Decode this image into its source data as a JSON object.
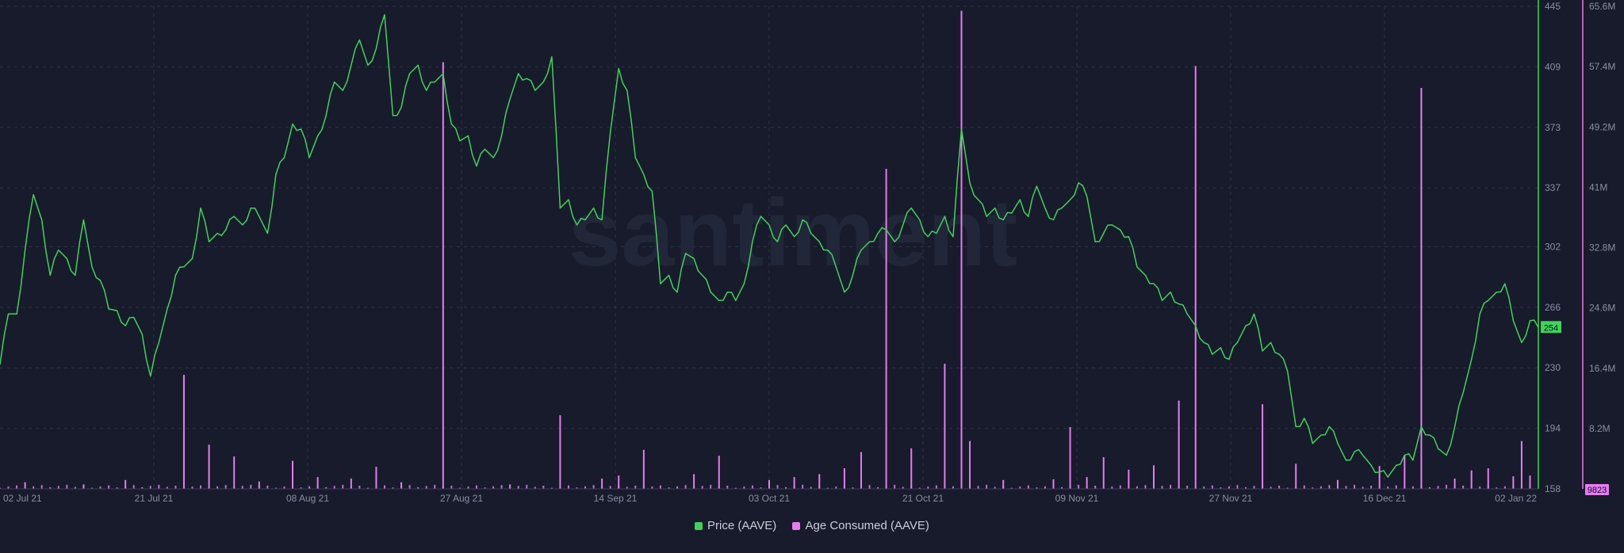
{
  "chart_data": {
    "type": "line",
    "title": "",
    "watermark": "santiment",
    "colors": {
      "price": "#3fd35a",
      "age": "#e77bf0",
      "background": "#181b2b",
      "grid": "#3a3e53",
      "tick": "#8a8ea3"
    },
    "x": {
      "ticks": [
        "02 Jul 21",
        "21 Jul 21",
        "08 Aug 21",
        "27 Aug 21",
        "14 Sep 21",
        "03 Oct 21",
        "21 Oct 21",
        "09 Nov 21",
        "27 Nov 21",
        "16 Dec 21",
        "02 Jan 22"
      ],
      "range": [
        "2021-07-02",
        "2022-01-02"
      ]
    },
    "y_left_price": {
      "range": [
        158,
        445
      ],
      "ticks": [
        "445",
        "409",
        "373",
        "337",
        "302",
        "266",
        "230",
        "194",
        "158"
      ]
    },
    "y_right_age": {
      "range": [
        0,
        65.6
      ],
      "unit": "M",
      "ticks": [
        "65.6M",
        "57.4M",
        "49.2M",
        "41M",
        "32.8M",
        "24.6M",
        "16.4M",
        "8.2M"
      ]
    },
    "current_price_label": "254",
    "current_age_label": "9823",
    "series": [
      {
        "name": "Price (AAVE)",
        "axis": "left",
        "points": [
          [
            "2021-07-02",
            232
          ],
          [
            "2021-07-03",
            262
          ],
          [
            "2021-07-04",
            262
          ],
          [
            "2021-07-05",
            300
          ],
          [
            "2021-07-06",
            333
          ],
          [
            "2021-07-07",
            318
          ],
          [
            "2021-07-08",
            285
          ],
          [
            "2021-07-09",
            300
          ],
          [
            "2021-07-10",
            295
          ],
          [
            "2021-07-11",
            285
          ],
          [
            "2021-07-12",
            318
          ],
          [
            "2021-07-13",
            290
          ],
          [
            "2021-07-14",
            282
          ],
          [
            "2021-07-15",
            265
          ],
          [
            "2021-07-16",
            264
          ],
          [
            "2021-07-17",
            255
          ],
          [
            "2021-07-18",
            260
          ],
          [
            "2021-07-19",
            250
          ],
          [
            "2021-07-20",
            225
          ],
          [
            "2021-07-21",
            245
          ],
          [
            "2021-07-22",
            265
          ],
          [
            "2021-07-23",
            285
          ],
          [
            "2021-07-24",
            290
          ],
          [
            "2021-07-25",
            295
          ],
          [
            "2021-07-26",
            325
          ],
          [
            "2021-07-27",
            305
          ],
          [
            "2021-07-28",
            310
          ],
          [
            "2021-07-29",
            312
          ],
          [
            "2021-07-30",
            320
          ],
          [
            "2021-07-31",
            315
          ],
          [
            "2021-08-01",
            325
          ],
          [
            "2021-08-02",
            320
          ],
          [
            "2021-08-03",
            310
          ],
          [
            "2021-08-04",
            345
          ],
          [
            "2021-08-05",
            355
          ],
          [
            "2021-08-06",
            375
          ],
          [
            "2021-08-07",
            372
          ],
          [
            "2021-08-08",
            355
          ],
          [
            "2021-08-09",
            368
          ],
          [
            "2021-08-10",
            380
          ],
          [
            "2021-08-11",
            400
          ],
          [
            "2021-08-12",
            395
          ],
          [
            "2021-08-13",
            410
          ],
          [
            "2021-08-14",
            425
          ],
          [
            "2021-08-15",
            410
          ],
          [
            "2021-08-16",
            420
          ],
          [
            "2021-08-17",
            440
          ],
          [
            "2021-08-18",
            380
          ],
          [
            "2021-08-19",
            385
          ],
          [
            "2021-08-20",
            405
          ],
          [
            "2021-08-21",
            410
          ],
          [
            "2021-08-22",
            395
          ],
          [
            "2021-08-23",
            400
          ],
          [
            "2021-08-24",
            405
          ],
          [
            "2021-08-25",
            375
          ],
          [
            "2021-08-26",
            365
          ],
          [
            "2021-08-27",
            368
          ],
          [
            "2021-08-28",
            350
          ],
          [
            "2021-08-29",
            360
          ],
          [
            "2021-08-30",
            355
          ],
          [
            "2021-08-31",
            368
          ],
          [
            "2021-09-01",
            390
          ],
          [
            "2021-09-02",
            405
          ],
          [
            "2021-09-03",
            402
          ],
          [
            "2021-09-04",
            395
          ],
          [
            "2021-09-05",
            400
          ],
          [
            "2021-09-06",
            415
          ],
          [
            "2021-09-07",
            325
          ],
          [
            "2021-09-08",
            330
          ],
          [
            "2021-09-09",
            315
          ],
          [
            "2021-09-10",
            318
          ],
          [
            "2021-09-11",
            325
          ],
          [
            "2021-09-12",
            318
          ],
          [
            "2021-09-13",
            370
          ],
          [
            "2021-09-14",
            408
          ],
          [
            "2021-09-15",
            395
          ],
          [
            "2021-09-16",
            355
          ],
          [
            "2021-09-17",
            345
          ],
          [
            "2021-09-18",
            335
          ],
          [
            "2021-09-19",
            280
          ],
          [
            "2021-09-20",
            285
          ],
          [
            "2021-09-21",
            275
          ],
          [
            "2021-09-22",
            298
          ],
          [
            "2021-09-23",
            295
          ],
          [
            "2021-09-24",
            285
          ],
          [
            "2021-09-25",
            275
          ],
          [
            "2021-09-26",
            270
          ],
          [
            "2021-09-27",
            275
          ],
          [
            "2021-09-28",
            270
          ],
          [
            "2021-09-29",
            280
          ],
          [
            "2021-09-30",
            305
          ],
          [
            "2021-10-01",
            320
          ],
          [
            "2021-10-02",
            315
          ],
          [
            "2021-10-03",
            305
          ],
          [
            "2021-10-04",
            315
          ],
          [
            "2021-10-05",
            308
          ],
          [
            "2021-10-06",
            318
          ],
          [
            "2021-10-07",
            310
          ],
          [
            "2021-10-08",
            305
          ],
          [
            "2021-10-09",
            300
          ],
          [
            "2021-10-10",
            290
          ],
          [
            "2021-10-11",
            275
          ],
          [
            "2021-10-12",
            285
          ],
          [
            "2021-10-13",
            300
          ],
          [
            "2021-10-14",
            305
          ],
          [
            "2021-10-15",
            310
          ],
          [
            "2021-10-16",
            312
          ],
          [
            "2021-10-17",
            305
          ],
          [
            "2021-10-18",
            315
          ],
          [
            "2021-10-19",
            325
          ],
          [
            "2021-10-20",
            318
          ],
          [
            "2021-10-21",
            308
          ],
          [
            "2021-10-22",
            310
          ],
          [
            "2021-10-23",
            320
          ],
          [
            "2021-10-24",
            308
          ],
          [
            "2021-10-25",
            372
          ],
          [
            "2021-10-26",
            340
          ],
          [
            "2021-10-27",
            330
          ],
          [
            "2021-10-28",
            320
          ],
          [
            "2021-10-29",
            325
          ],
          [
            "2021-10-30",
            318
          ],
          [
            "2021-10-31",
            322
          ],
          [
            "2021-11-01",
            330
          ],
          [
            "2021-11-02",
            320
          ],
          [
            "2021-11-03",
            338
          ],
          [
            "2021-11-04",
            325
          ],
          [
            "2021-11-05",
            318
          ],
          [
            "2021-11-06",
            325
          ],
          [
            "2021-11-07",
            330
          ],
          [
            "2021-11-08",
            340
          ],
          [
            "2021-11-09",
            332
          ],
          [
            "2021-11-10",
            305
          ],
          [
            "2021-11-11",
            310
          ],
          [
            "2021-11-12",
            315
          ],
          [
            "2021-11-13",
            312
          ],
          [
            "2021-11-14",
            308
          ],
          [
            "2021-11-15",
            290
          ],
          [
            "2021-11-16",
            285
          ],
          [
            "2021-11-17",
            280
          ],
          [
            "2021-11-18",
            270
          ],
          [
            "2021-11-19",
            275
          ],
          [
            "2021-11-20",
            268
          ],
          [
            "2021-11-21",
            262
          ],
          [
            "2021-11-22",
            255
          ],
          [
            "2021-11-23",
            245
          ],
          [
            "2021-11-24",
            238
          ],
          [
            "2021-11-25",
            242
          ],
          [
            "2021-11-26",
            235
          ],
          [
            "2021-11-27",
            245
          ],
          [
            "2021-11-28",
            255
          ],
          [
            "2021-11-29",
            262
          ],
          [
            "2021-11-30",
            240
          ],
          [
            "2021-12-01",
            245
          ],
          [
            "2021-12-02",
            238
          ],
          [
            "2021-12-03",
            228
          ],
          [
            "2021-12-04",
            195
          ],
          [
            "2021-12-05",
            200
          ],
          [
            "2021-12-06",
            185
          ],
          [
            "2021-12-07",
            190
          ],
          [
            "2021-12-08",
            195
          ],
          [
            "2021-12-09",
            185
          ],
          [
            "2021-12-10",
            175
          ],
          [
            "2021-12-11",
            180
          ],
          [
            "2021-12-12",
            178
          ],
          [
            "2021-12-13",
            172
          ],
          [
            "2021-12-14",
            168
          ],
          [
            "2021-12-15",
            165
          ],
          [
            "2021-12-16",
            172
          ],
          [
            "2021-12-17",
            178
          ],
          [
            "2021-12-18",
            175
          ],
          [
            "2021-12-19",
            195
          ],
          [
            "2021-12-20",
            190
          ],
          [
            "2021-12-21",
            182
          ],
          [
            "2021-12-22",
            178
          ],
          [
            "2021-12-23",
            195
          ],
          [
            "2021-12-24",
            215
          ],
          [
            "2021-12-25",
            235
          ],
          [
            "2021-12-26",
            262
          ],
          [
            "2021-12-27",
            270
          ],
          [
            "2021-12-28",
            275
          ],
          [
            "2021-12-29",
            280
          ],
          [
            "2021-12-30",
            258
          ],
          [
            "2021-12-31",
            245
          ],
          [
            "2022-01-01",
            258
          ],
          [
            "2022-01-02",
            254
          ]
        ]
      },
      {
        "name": "Age Consumed (AAVE)",
        "axis": "right",
        "unit": "M",
        "points": [
          [
            "2021-07-05",
            0.9
          ],
          [
            "2021-07-12",
            0.6
          ],
          [
            "2021-07-17",
            1.2
          ],
          [
            "2021-07-24",
            15.5
          ],
          [
            "2021-07-27",
            6.0
          ],
          [
            "2021-07-30",
            4.4
          ],
          [
            "2021-08-02",
            1.0
          ],
          [
            "2021-08-06",
            3.8
          ],
          [
            "2021-08-09",
            1.6
          ],
          [
            "2021-08-13",
            1.4
          ],
          [
            "2021-08-16",
            3.0
          ],
          [
            "2021-08-19",
            0.9
          ],
          [
            "2021-08-24",
            58.0
          ],
          [
            "2021-09-01",
            0.6
          ],
          [
            "2021-09-07",
            10.0
          ],
          [
            "2021-09-12",
            1.4
          ],
          [
            "2021-09-14",
            1.8
          ],
          [
            "2021-09-17",
            5.3
          ],
          [
            "2021-09-23",
            2.0
          ],
          [
            "2021-09-26",
            4.5
          ],
          [
            "2021-10-02",
            1.2
          ],
          [
            "2021-10-05",
            1.6
          ],
          [
            "2021-10-08",
            2.0
          ],
          [
            "2021-10-11",
            2.8
          ],
          [
            "2021-10-13",
            5.0
          ],
          [
            "2021-10-16",
            43.5
          ],
          [
            "2021-10-19",
            5.5
          ],
          [
            "2021-10-23",
            17.0
          ],
          [
            "2021-10-25",
            65.0
          ],
          [
            "2021-10-25",
            20.0
          ],
          [
            "2021-10-26",
            6.5
          ],
          [
            "2021-10-30",
            1.2
          ],
          [
            "2021-11-05",
            1.3
          ],
          [
            "2021-11-07",
            8.4
          ],
          [
            "2021-11-09",
            1.6
          ],
          [
            "2021-11-11",
            4.3
          ],
          [
            "2021-11-14",
            2.6
          ],
          [
            "2021-11-17",
            3.2
          ],
          [
            "2021-11-20",
            12.0
          ],
          [
            "2021-11-22",
            57.5
          ],
          [
            "2021-11-30",
            11.5
          ],
          [
            "2021-12-04",
            3.4
          ],
          [
            "2021-12-09",
            1.2
          ],
          [
            "2021-12-14",
            3.1
          ],
          [
            "2021-12-17",
            4.5
          ],
          [
            "2021-12-19",
            54.5
          ],
          [
            "2021-12-23",
            1.4
          ],
          [
            "2021-12-25",
            2.5
          ],
          [
            "2021-12-27",
            2.8
          ],
          [
            "2021-12-30",
            1.7
          ],
          [
            "2021-12-31",
            6.5
          ],
          [
            "2022-01-01",
            1.8
          ]
        ]
      }
    ],
    "legend": {
      "placement": "bottom-center"
    },
    "grid": true
  }
}
